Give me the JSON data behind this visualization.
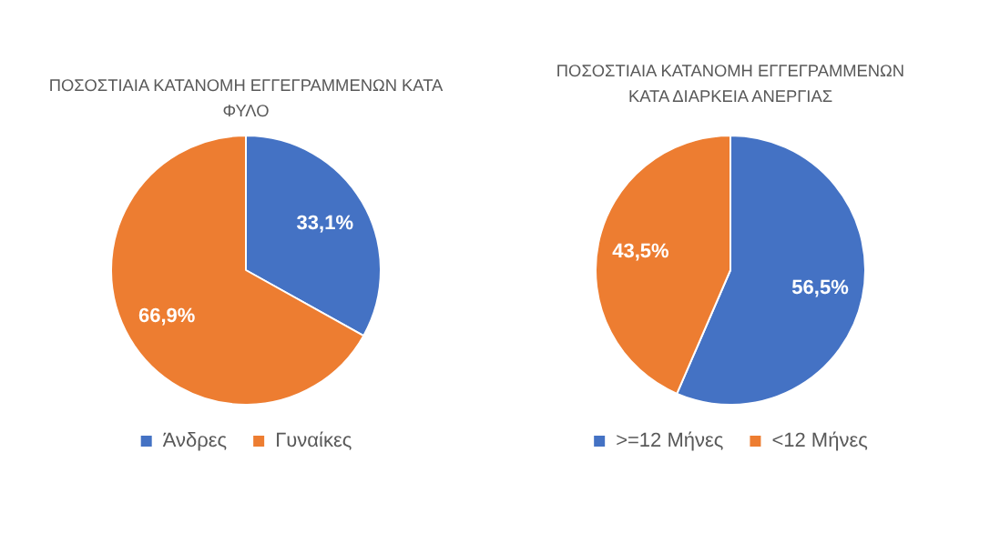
{
  "chart_data": [
    {
      "type": "pie",
      "title": "ΠΟΣΟΣΤΙΑΙΑ ΚΑΤΑΝΟΜΗ ΕΓΓΕΓΡΑΜΜΕΝΩΝ ΚΑΤΑ ΦΥΛΟ",
      "categories": [
        "Άνδρες",
        "Γυναίκες"
      ],
      "values": [
        33.1,
        66.9
      ],
      "colors": [
        "#4472c4",
        "#ed7d31"
      ],
      "value_labels": [
        "33,1%",
        "66,9%"
      ],
      "legend": "bottom"
    },
    {
      "type": "pie",
      "title": "ΠΟΣΟΣΤΙΑΙΑ ΚΑΤΑΝΟΜΗ ΕΓΓΕΓΡΑΜΜΕΝΩΝ ΚΑΤΑ ΔΙΑΡΚΕΙΑ ΑΝΕΡΓΙΑΣ",
      "categories": [
        ">=12 Μήνες",
        "<12 Μήνες"
      ],
      "values": [
        56.5,
        43.5
      ],
      "colors": [
        "#4472c4",
        "#ed7d31"
      ],
      "value_labels": [
        "56,5%",
        "43,5%"
      ],
      "legend": "bottom"
    }
  ]
}
